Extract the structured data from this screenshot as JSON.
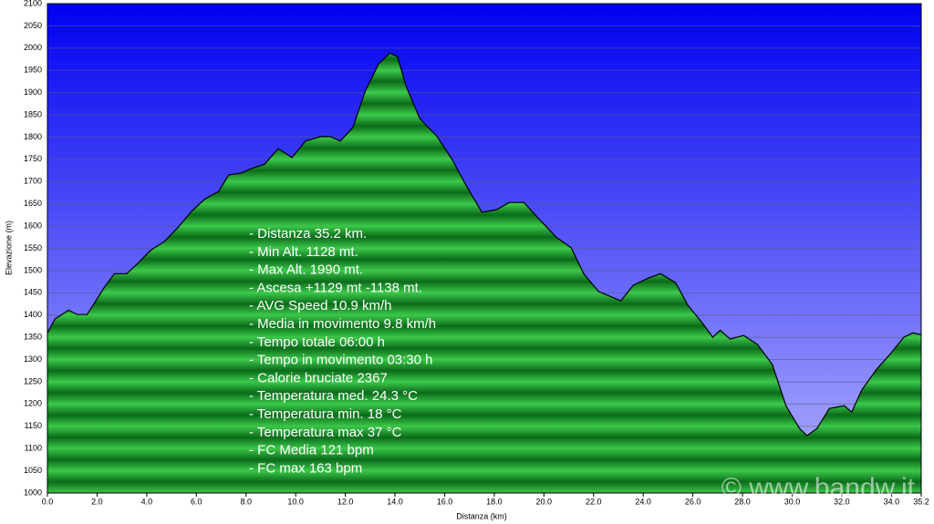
{
  "chart_data": {
    "type": "area",
    "ylabel": "Elevazione (m)",
    "xlabel": "Distanza  (km)",
    "color": "#1f9a2e",
    "line_color": "#000000",
    "grid": true,
    "x": [
      0,
      0.3,
      0.85,
      1.2,
      1.6,
      1.95,
      2.3,
      2.7,
      3.2,
      3.6,
      4.15,
      4.7,
      5.25,
      5.8,
      6.35,
      6.9,
      7.3,
      7.8,
      8.2,
      8.75,
      9.3,
      9.85,
      10.4,
      11.0,
      11.4,
      11.8,
      12.3,
      12.8,
      13.35,
      13.8,
      14.1,
      14.45,
      15.0,
      15.7,
      16.3,
      16.8,
      17.5,
      18.1,
      18.6,
      19.2,
      19.8,
      20.5,
      21.1,
      21.6,
      22.2,
      23.1,
      23.6,
      24.2,
      24.7,
      25.3,
      25.8,
      26.4,
      26.8,
      27.1,
      27.5,
      28.05,
      28.6,
      29.2,
      29.75,
      30.3,
      30.6,
      31.0,
      31.5,
      32.1,
      32.4,
      32.8,
      33.4,
      33.9,
      34.5,
      34.85,
      35.2
    ],
    "values": [
      1360,
      1391,
      1411,
      1401,
      1401,
      1432,
      1463,
      1493,
      1493,
      1514,
      1545,
      1565,
      1596,
      1633,
      1661,
      1678,
      1715,
      1719,
      1729,
      1739,
      1774,
      1754,
      1791,
      1801,
      1801,
      1791,
      1821,
      1903,
      1965,
      1989,
      1981,
      1914,
      1842,
      1801,
      1750,
      1698,
      1631,
      1637,
      1653,
      1653,
      1616,
      1575,
      1551,
      1493,
      1453,
      1432,
      1467,
      1483,
      1493,
      1473,
      1422,
      1381,
      1350,
      1366,
      1346,
      1354,
      1334,
      1289,
      1196,
      1145,
      1129,
      1145,
      1190,
      1196,
      1182,
      1231,
      1278,
      1309,
      1350,
      1360,
      1356
    ],
    "xlim": [
      0,
      35.2
    ],
    "ylim": [
      1000,
      2100
    ],
    "xticks": [
      {
        "value": 0,
        "label": "0.0"
      },
      {
        "value": 2,
        "label": "2.0"
      },
      {
        "value": 4,
        "label": "4.0"
      },
      {
        "value": 6,
        "label": "6.0"
      },
      {
        "value": 8,
        "label": "8.0"
      },
      {
        "value": 10,
        "label": "10.0"
      },
      {
        "value": 12,
        "label": "12.0"
      },
      {
        "value": 14,
        "label": "14.0"
      },
      {
        "value": 16,
        "label": "16.0"
      },
      {
        "value": 18,
        "label": "18.0"
      },
      {
        "value": 20,
        "label": "20.0"
      },
      {
        "value": 22,
        "label": "22.0"
      },
      {
        "value": 24,
        "label": "24.0"
      },
      {
        "value": 26,
        "label": "26.0"
      },
      {
        "value": 28,
        "label": "28.0"
      },
      {
        "value": 30,
        "label": "30.0"
      },
      {
        "value": 32,
        "label": "32.0"
      },
      {
        "value": 34,
        "label": "34.0"
      },
      35.2
    ],
    "yticks": [
      1000,
      1050,
      1100,
      1150,
      1200,
      1250,
      1300,
      1350,
      1400,
      1450,
      1500,
      1550,
      1600,
      1650,
      1700,
      1750,
      1800,
      1850,
      1900,
      1950,
      2000,
      2050,
      2100
    ],
    "annotations": [
      "- Distanza 35.2 km.",
      "- Min Alt. 1128 mt.",
      "- Max Alt. 1990 mt.",
      "- Ascesa +1129 mt -1138 mt.",
      "- AVG Speed 10.9 km/h",
      "- Media in movimento 9.8 km/h",
      "- Tempo totale 06:00 h",
      "- Tempo in movimento 03:30 h",
      "- Calorie bruciate 2367",
      "- Temperatura med. 24.3 °C",
      "- Temperatura min. 18 °C",
      "- Temperatura max 37 °C",
      "- FC Media 121 bpm",
      "- FC max 163 bpm"
    ],
    "watermark": "© www.bandw.it"
  }
}
